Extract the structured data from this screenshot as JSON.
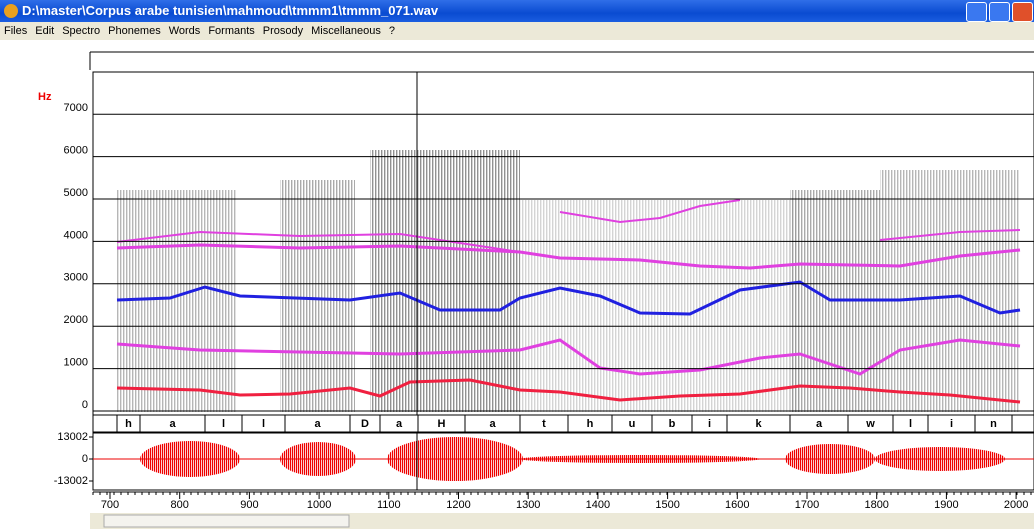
{
  "window": {
    "title": "D:\\master\\Corpus arabe tunisien\\mahmoud\\tmmm1\\tmmm_071.wav"
  },
  "menu": [
    "Files",
    "Edit",
    "Spectro",
    "Phonemes",
    "Words",
    "Formants",
    "Prosody",
    "Miscellaneous",
    "?"
  ],
  "spectrogram": {
    "unit": "Hz",
    "yticks": [
      0,
      1000,
      2000,
      3000,
      4000,
      5000,
      6000,
      7000
    ]
  },
  "phonemes": [
    "h",
    "a",
    "l",
    "l",
    "a",
    "D",
    "a",
    "H",
    "a",
    "t",
    "h",
    "u",
    "b",
    "i",
    "k",
    "a",
    "w",
    "l",
    "i",
    "n"
  ],
  "waveform": {
    "yticks": [
      13002,
      0,
      -13002
    ]
  },
  "time_axis": {
    "xticks": [
      700,
      800,
      900,
      1000,
      1100,
      1200,
      1300,
      1400,
      1500,
      1600,
      1700,
      1800,
      1900,
      2000
    ]
  }
}
